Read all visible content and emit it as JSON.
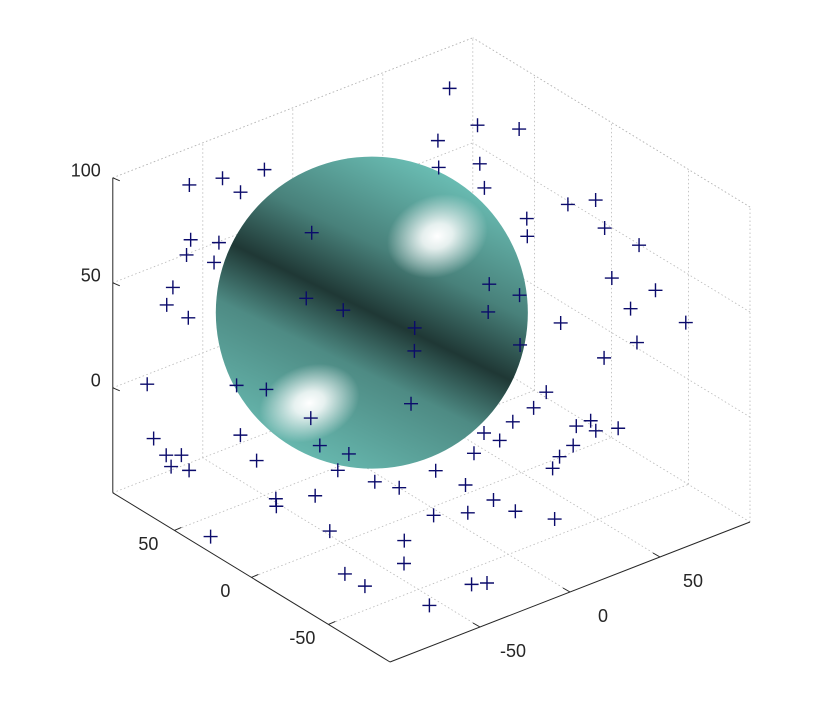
{
  "chart_data": {
    "type": "scatter3",
    "x": [
      64,
      53,
      65,
      31,
      44,
      28,
      -44,
      -78,
      -63,
      -53,
      38,
      63,
      69,
      47,
      74,
      82,
      72,
      80,
      84,
      73,
      68,
      60,
      53,
      -73,
      -65,
      -77,
      -66,
      -88,
      -94,
      -88,
      -98,
      -91,
      -96,
      -85,
      -85,
      -89,
      -97,
      -83,
      -80,
      -83,
      -87,
      -68,
      -71,
      -78,
      -78,
      -51,
      -58,
      -61,
      -35,
      -29,
      -27,
      -14,
      3,
      12,
      -4,
      -11,
      -19,
      -35,
      -40,
      -52,
      -45,
      -56,
      2,
      -8,
      -5,
      11,
      20,
      33,
      36,
      40,
      49,
      38,
      30,
      25,
      22,
      -80,
      -28,
      -43,
      -37,
      -11,
      -18,
      -31,
      -73,
      -78,
      27,
      17,
      49,
      27,
      37
    ],
    "y": [
      63,
      32,
      19,
      32,
      20,
      28,
      57,
      66,
      62,
      62,
      10,
      -15,
      -26,
      -7,
      -26,
      -39,
      -33,
      -52,
      -67,
      -44,
      -54,
      -42,
      -22,
      71,
      62,
      69,
      64,
      65,
      62,
      55,
      70,
      74,
      60,
      63,
      58,
      65,
      30,
      27,
      20,
      4,
      -1,
      -4,
      -17,
      -35,
      -48,
      -42,
      -50,
      -70,
      -67,
      -70,
      -33,
      -40,
      -51,
      -66,
      -45,
      -35,
      -25,
      -20,
      -10,
      0,
      1,
      7,
      -42,
      -37,
      -40,
      -40,
      -43,
      -36,
      -52,
      -60,
      -64,
      -59,
      -57,
      -54,
      -53,
      33,
      45,
      31,
      14,
      -2,
      -10,
      -23,
      -7,
      16,
      -6,
      -17,
      -5,
      -26,
      -14
    ],
    "z": [
      100,
      100,
      100,
      100,
      90,
      90,
      100,
      100,
      100,
      90,
      85,
      80,
      85,
      75,
      70,
      65,
      50,
      50,
      40,
      40,
      30,
      20,
      30,
      70,
      70,
      65,
      60,
      55,
      50,
      45,
      10,
      -20,
      -20,
      -25,
      -30,
      -30,
      -45,
      0,
      -10,
      -20,
      -20,
      -20,
      -30,
      -40,
      -40,
      -30,
      -35,
      -45,
      -45,
      -45,
      -30,
      -30,
      -30,
      -30,
      -25,
      -20,
      -15,
      -20,
      -20,
      -15,
      -10,
      -5,
      0,
      -5,
      5,
      5,
      10,
      10,
      0,
      0,
      0,
      5,
      -5,
      -10,
      -15,
      20,
      70,
      50,
      50,
      40,
      35,
      20,
      20,
      25,
      50,
      45,
      65,
      30,
      45
    ],
    "marker": "+",
    "color": "#0b0b6b",
    "surface": {
      "type": "sphere",
      "center": [
        -10,
        27,
        34
      ],
      "radius": 78,
      "color": "#6fc6bc"
    },
    "xlim": [
      -100,
      100
    ],
    "ylim": [
      -90,
      90
    ],
    "zlim": [
      -50,
      100
    ],
    "xticks": [
      -50,
      0,
      50
    ],
    "yticks": [
      -50,
      0,
      50
    ],
    "zticks": [
      0,
      50,
      100
    ],
    "grid": true
  }
}
